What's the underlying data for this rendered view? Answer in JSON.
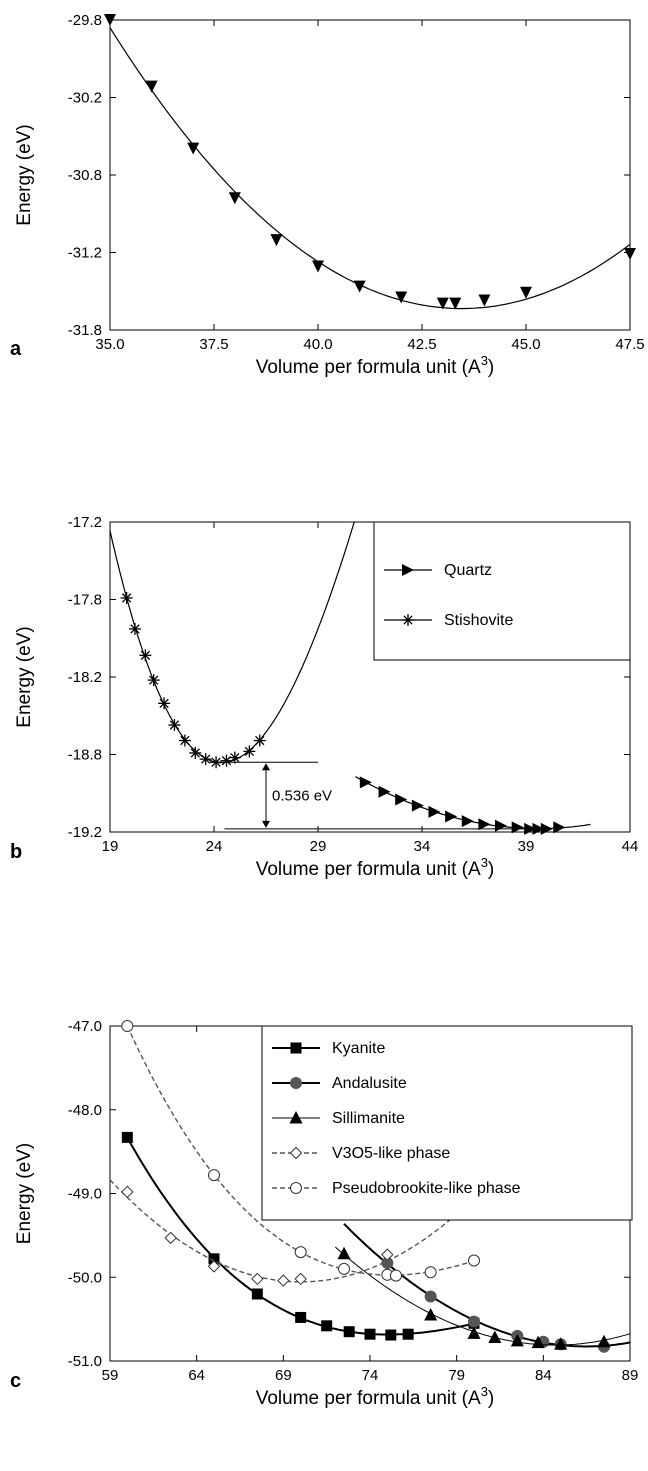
{
  "chart_data": [
    {
      "type": "scatter",
      "panel_label": "a",
      "xlabel": "Volume per formula unit (A",
      "xlabel_sup": "3",
      "xlabel_close": ")",
      "ylabel": "Energy (eV)",
      "xlim": [
        35.0,
        47.5
      ],
      "ylim": [
        -31.8,
        -29.8
      ],
      "xticks": [
        "35.0",
        "37.5",
        "40.0",
        "42.5",
        "45.0",
        "47.5"
      ],
      "yticks": [
        "-29.8",
        "-30.2",
        "-30.8",
        "-31.2",
        "-31.8"
      ],
      "series": [
        {
          "marker": "triangle-down",
          "fit": "solid",
          "x": [
            35.0,
            36.0,
            37.0,
            38.0,
            39.0,
            40.0,
            41.0,
            42.0,
            43.0,
            43.3,
            44.0,
            45.0,
            47.5
          ],
          "y": [
            -29.8,
            -30.23,
            -30.63,
            -30.95,
            -31.22,
            -31.39,
            -31.52,
            -31.59,
            -31.63,
            -31.63,
            -31.61,
            -31.56,
            -31.31
          ]
        }
      ]
    },
    {
      "type": "scatter",
      "panel_label": "b",
      "xlabel": "Volume per formula unit (A",
      "xlabel_sup": "3",
      "xlabel_close": ")",
      "ylabel": "Energy (eV)",
      "xlim": [
        19,
        44
      ],
      "ylim": [
        -19.2,
        -17.2
      ],
      "xticks": [
        "19",
        "24",
        "29",
        "34",
        "39",
        "44"
      ],
      "yticks": [
        "-17.2",
        "-17.8",
        "-18.2",
        "-18.8",
        "-19.2"
      ],
      "legend": {
        "position": "top-right",
        "entries": [
          "Quartz",
          "Stishovite"
        ]
      },
      "annotation": "0.536 eV",
      "series": [
        {
          "name": "Quartz",
          "marker": "triangle-right",
          "fit": "solid",
          "x": [
            31.3,
            32.2,
            33.0,
            33.8,
            34.6,
            35.4,
            36.2,
            37.0,
            37.8,
            38.6,
            39.2,
            39.6,
            40.0,
            40.6
          ],
          "y": [
            -18.88,
            -18.94,
            -18.99,
            -19.03,
            -19.07,
            -19.1,
            -19.13,
            -19.15,
            -19.16,
            -19.17,
            -19.18,
            -19.18,
            -19.18,
            -19.17
          ]
        },
        {
          "name": "Stishovite",
          "marker": "asterisk",
          "fit": "solid",
          "x": [
            19.8,
            20.2,
            20.7,
            21.1,
            21.6,
            22.1,
            22.6,
            23.1,
            23.6,
            24.1,
            24.6,
            25.0,
            25.7,
            26.2
          ],
          "y": [
            -17.69,
            -17.89,
            -18.06,
            -18.22,
            -18.37,
            -18.51,
            -18.61,
            -18.69,
            -18.73,
            -18.75,
            -18.74,
            -18.72,
            -18.68,
            -18.61
          ]
        }
      ]
    },
    {
      "type": "scatter",
      "panel_label": "c",
      "xlabel": "Volume per formula unit (A",
      "xlabel_sup": "3",
      "xlabel_close": ")",
      "ylabel": "Energy (eV)",
      "xlim": [
        59,
        89
      ],
      "ylim": [
        -51.0,
        -47.0
      ],
      "xticks": [
        "59",
        "64",
        "69",
        "74",
        "79",
        "84",
        "89"
      ],
      "yticks": [
        "-47.0",
        "-48.0",
        "-49.0",
        "-50.0",
        "-51.0"
      ],
      "legend": {
        "position": "top-right",
        "entries": [
          "Kyanite",
          "Andalusite",
          "Sillimanite",
          "V3O5-like phase",
          "Pseudobrookite-like phase"
        ]
      },
      "series": [
        {
          "name": "Kyanite",
          "marker": "filled-square",
          "fit": "solid-thick",
          "x": [
            60.0,
            65.0,
            67.5,
            70.0,
            71.5,
            72.8,
            74.0,
            75.2,
            76.2,
            80.0
          ],
          "y": [
            -48.33,
            -49.78,
            -50.2,
            -50.48,
            -50.58,
            -50.65,
            -50.68,
            -50.69,
            -50.68,
            -50.55
          ]
        },
        {
          "name": "Andalusite",
          "marker": "filled-circle",
          "fit": "solid-thick",
          "x": [
            75.0,
            77.5,
            80.0,
            82.5,
            84.0,
            85.0,
            87.5
          ],
          "y": [
            -49.83,
            -50.23,
            -50.53,
            -50.7,
            -50.77,
            -50.8,
            -50.83
          ]
        },
        {
          "name": "Sillimanite",
          "marker": "filled-triangle",
          "fit": "solid-thin",
          "x": [
            72.5,
            77.5,
            80.0,
            81.2,
            82.5,
            83.7,
            85.0,
            87.5
          ],
          "y": [
            -49.72,
            -50.45,
            -50.67,
            -50.72,
            -50.76,
            -50.78,
            -50.8,
            -50.77
          ]
        },
        {
          "name": "V3O5-like phase",
          "marker": "open-diamond",
          "fit": "dashed",
          "x": [
            60.0,
            62.5,
            65.0,
            67.5,
            69.0,
            70.0,
            75.0,
            80.0
          ],
          "y": [
            -48.98,
            -49.53,
            -49.87,
            -50.02,
            -50.04,
            -50.02,
            -49.73,
            -49.1
          ]
        },
        {
          "name": "Pseudobrookite-like phase",
          "marker": "open-circle",
          "fit": "dashed",
          "x": [
            60.0,
            65.0,
            70.0,
            72.5,
            75.0,
            75.5,
            77.5,
            80.0
          ],
          "y": [
            -47.0,
            -48.78,
            -49.7,
            -49.9,
            -49.97,
            -49.98,
            -49.94,
            -49.8
          ]
        }
      ]
    }
  ]
}
